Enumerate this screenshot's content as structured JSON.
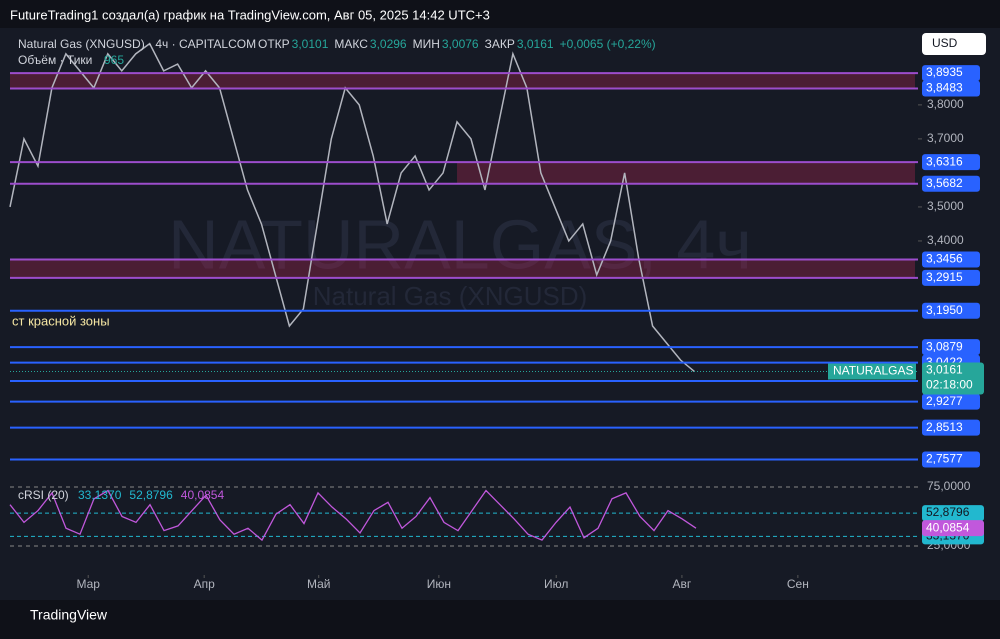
{
  "header": {
    "caption": "FutureTrading1 создал(а) график на TradingView.com, Авг 05, 2025 14:42 UTC+3",
    "symbol": "Natural Gas (XNGUSD) · 4ч · CAPITALCOM",
    "ohlc": [
      {
        "label": "ОТКР",
        "value": "3,0101"
      },
      {
        "label": "МАКС",
        "value": "3,0296"
      },
      {
        "label": "МИН",
        "value": "3,0076"
      },
      {
        "label": "ЗАКР",
        "value": "3,0161"
      }
    ],
    "change": "+0,0065 (+0,22%)",
    "volume_label": "Объём · Тики",
    "volume_value": "965",
    "currency": "USD",
    "watermark": "NATURALGAS, 4ч",
    "watermark_sub": "Natural Gas (XNGUSD)",
    "annotation": "ст красной зоны",
    "footer": "TradingView"
  },
  "chart_data": [
    {
      "type": "line",
      "name": "price",
      "color": "#b2b5be",
      "x": [
        0,
        1,
        2,
        3,
        4,
        5,
        6,
        7,
        8,
        9,
        10,
        11,
        12,
        13,
        14,
        15,
        16,
        17,
        18,
        19,
        20,
        21,
        22,
        23,
        24,
        25,
        26,
        27,
        28,
        29,
        30,
        31,
        32,
        33,
        34,
        35,
        36,
        37,
        38,
        39,
        40,
        41,
        42,
        43,
        44,
        45,
        46,
        47,
        48,
        49
      ],
      "values": [
        3.5,
        3.7,
        3.62,
        3.85,
        3.95,
        3.9,
        3.85,
        3.95,
        3.9,
        3.95,
        3.98,
        3.9,
        3.92,
        3.85,
        3.9,
        3.85,
        3.7,
        3.55,
        3.45,
        3.3,
        3.15,
        3.2,
        3.45,
        3.7,
        3.85,
        3.8,
        3.65,
        3.45,
        3.6,
        3.65,
        3.55,
        3.6,
        3.75,
        3.7,
        3.55,
        3.75,
        3.95,
        3.85,
        3.6,
        3.5,
        3.4,
        3.45,
        3.3,
        3.4,
        3.6,
        3.35,
        3.15,
        3.1,
        3.05,
        3.016
      ],
      "xlim": [
        0,
        65
      ],
      "xticks": [
        {
          "value": 5.6,
          "label": "Мар"
        },
        {
          "value": 13.9,
          "label": "Апр"
        },
        {
          "value": 22.1,
          "label": "Май"
        },
        {
          "value": 30.7,
          "label": "Июн"
        },
        {
          "value": 39.1,
          "label": "Июл"
        },
        {
          "value": 48.1,
          "label": "Авг"
        },
        {
          "value": 56.4,
          "label": "Сен"
        }
      ],
      "ylim": [
        2.712,
        4.026
      ],
      "yticks": [
        {
          "value": 3.8,
          "label": "3,8000"
        },
        {
          "value": 3.7,
          "label": "3,7000"
        },
        {
          "value": 3.5,
          "label": "3,5000"
        },
        {
          "value": 3.4,
          "label": "3,4000"
        }
      ],
      "levels": [
        {
          "value": 3.8935,
          "label": "3,8935",
          "color": "#9c4dcc"
        },
        {
          "value": 3.8483,
          "label": "3,8483",
          "color": "#9c4dcc"
        },
        {
          "value": 3.6316,
          "label": "3,6316",
          "color": "#9c4dcc"
        },
        {
          "value": 3.5682,
          "label": "3,5682",
          "color": "#9c4dcc"
        },
        {
          "value": 3.3456,
          "label": "3,3456",
          "color": "#9c4dcc"
        },
        {
          "value": 3.2915,
          "label": "3,2915",
          "color": "#9c4dcc"
        },
        {
          "value": 3.195,
          "label": "3,1950",
          "color": "#2962ff"
        },
        {
          "value": 3.0879,
          "label": "3,0879",
          "color": "#2962ff"
        },
        {
          "value": 3.0422,
          "label": "3,0422",
          "color": "#2962ff"
        },
        {
          "value": 2.9883,
          "label": "2,9883",
          "color": "#2962ff"
        },
        {
          "value": 2.9277,
          "label": "2,9277",
          "color": "#2962ff"
        },
        {
          "value": 2.8513,
          "label": "2,8513",
          "color": "#2962ff"
        },
        {
          "value": 2.7577,
          "label": "2,7577",
          "color": "#2962ff"
        }
      ],
      "zones": [
        {
          "from": 3.8483,
          "to": 3.8935,
          "start": 0
        },
        {
          "from": 3.5682,
          "to": 3.6316,
          "start": 32
        },
        {
          "from": 3.2915,
          "to": 3.3456,
          "start": 0
        }
      ],
      "current": {
        "value": 3.0161,
        "label": "3,0161",
        "name": "NATURALGAS",
        "timer": "02:18:00"
      }
    },
    {
      "type": "line",
      "name": "cRSI (20)",
      "color": "#c158dc",
      "band_color": "#22b8cf",
      "values": [
        60,
        45,
        55,
        70,
        40,
        35,
        65,
        72,
        50,
        45,
        60,
        38,
        42,
        55,
        68,
        47,
        35,
        40,
        30,
        52,
        60,
        44,
        70,
        58,
        48,
        36,
        55,
        62,
        40,
        50,
        66,
        45,
        38,
        55,
        72,
        60,
        48,
        35,
        30,
        45,
        58,
        32,
        40,
        65,
        70,
        50,
        38,
        55,
        48,
        40.0854
      ],
      "ylim": [
        21.6,
        80.9
      ],
      "yticks": [
        {
          "value": 75,
          "label": "75,0000"
        },
        {
          "value": 25,
          "label": "25,0000"
        }
      ],
      "bands": [
        {
          "value": 52.8796,
          "label": "52,8796"
        },
        {
          "value": 33.137,
          "label": "33,1370"
        }
      ],
      "last_label": "40,0854",
      "legend_values": [
        "33,1370",
        "52,8796",
        "40,0854"
      ]
    }
  ]
}
